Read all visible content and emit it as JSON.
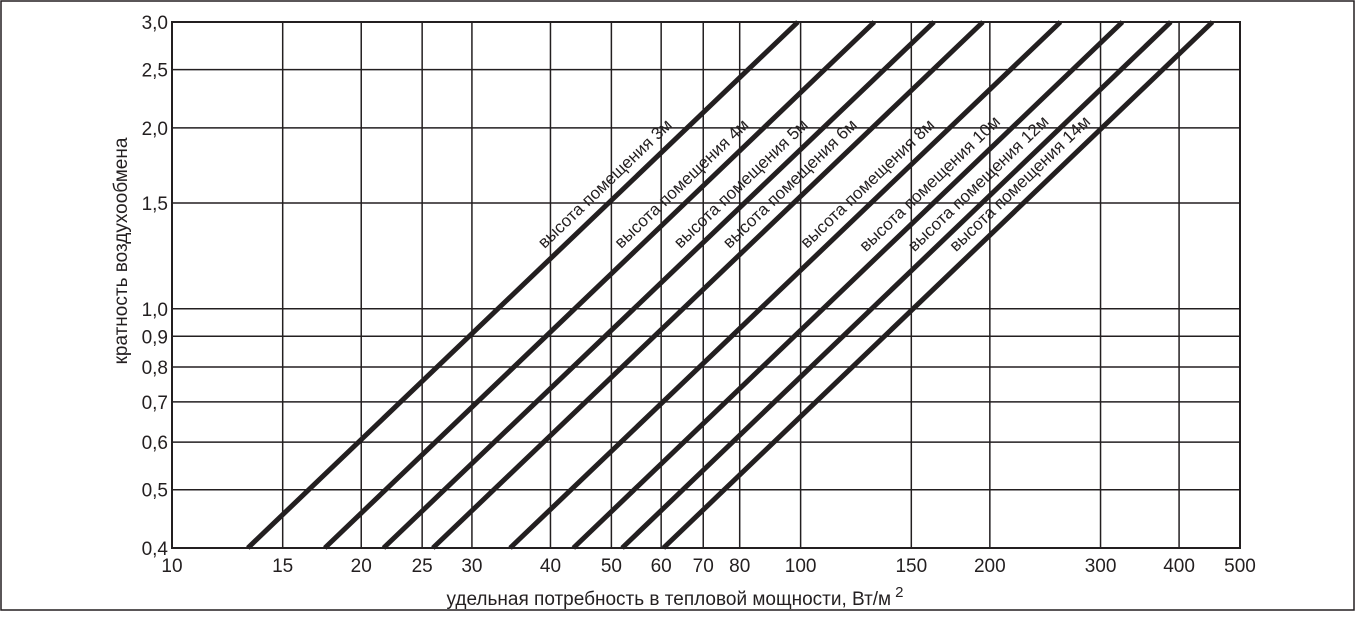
{
  "chart_data": {
    "type": "line",
    "title": "",
    "xlabel": "удельная потребность в тепловой мощности, Вт/м",
    "xlabel_sup": "2",
    "ylabel": "кратность воздухообмена",
    "x_scale": "log",
    "y_scale": "log",
    "xlim": [
      10,
      500
    ],
    "ylim": [
      0.4,
      3.0
    ],
    "grid": true,
    "legend": "none",
    "x_ticks": [
      {
        "value": 10,
        "label": "10"
      },
      {
        "value": 15,
        "label": "15"
      },
      {
        "value": 20,
        "label": "20"
      },
      {
        "value": 25,
        "label": "25"
      },
      {
        "value": 30,
        "label": "30"
      },
      {
        "value": 40,
        "label": "40"
      },
      {
        "value": 50,
        "label": "50"
      },
      {
        "value": 60,
        "label": "60"
      },
      {
        "value": 70,
        "label": "70"
      },
      {
        "value": 80,
        "label": "80"
      },
      {
        "value": 100,
        "label": "100"
      },
      {
        "value": 150,
        "label": "150"
      },
      {
        "value": 200,
        "label": "200"
      },
      {
        "value": 300,
        "label": "300"
      },
      {
        "value": 400,
        "label": "400"
      },
      {
        "value": 500,
        "label": "500"
      }
    ],
    "y_ticks": [
      {
        "value": 0.4,
        "label": "0,4"
      },
      {
        "value": 0.5,
        "label": "0,5"
      },
      {
        "value": 0.6,
        "label": "0,6"
      },
      {
        "value": 0.7,
        "label": "0,7"
      },
      {
        "value": 0.8,
        "label": "0,8"
      },
      {
        "value": 0.9,
        "label": "0,9"
      },
      {
        "value": 1.0,
        "label": "1,0"
      },
      {
        "value": 1.5,
        "label": "1,5"
      },
      {
        "value": 2.0,
        "label": "2,0"
      },
      {
        "value": 2.5,
        "label": "2,5"
      },
      {
        "value": 3.0,
        "label": "3,0"
      }
    ],
    "series": [
      {
        "name": "высота помещения 3м",
        "x": [
          13.2,
          99
        ],
        "y": [
          0.4,
          3.0
        ]
      },
      {
        "name": "высота помещения 4м",
        "x": [
          17.5,
          131
        ],
        "y": [
          0.4,
          3.0
        ]
      },
      {
        "name": "высота помещения 5м",
        "x": [
          21.7,
          163
        ],
        "y": [
          0.4,
          3.0
        ]
      },
      {
        "name": "высота помещения 6м",
        "x": [
          26,
          195
        ],
        "y": [
          0.4,
          3.0
        ]
      },
      {
        "name": "высота помещения 8м",
        "x": [
          34.5,
          259
        ],
        "y": [
          0.4,
          3.0
        ]
      },
      {
        "name": "высота помещения 10м",
        "x": [
          43.5,
          325
        ],
        "y": [
          0.4,
          3.0
        ]
      },
      {
        "name": "высота помещения 12м",
        "x": [
          52,
          388
        ],
        "y": [
          0.4,
          3.0
        ]
      },
      {
        "name": "высота помещения 14м",
        "x": [
          60.5,
          452
        ],
        "y": [
          0.4,
          3.0
        ]
      }
    ],
    "colors": {
      "line": "#231f20",
      "grid": "#231f20",
      "background": "#ffffff"
    }
  }
}
